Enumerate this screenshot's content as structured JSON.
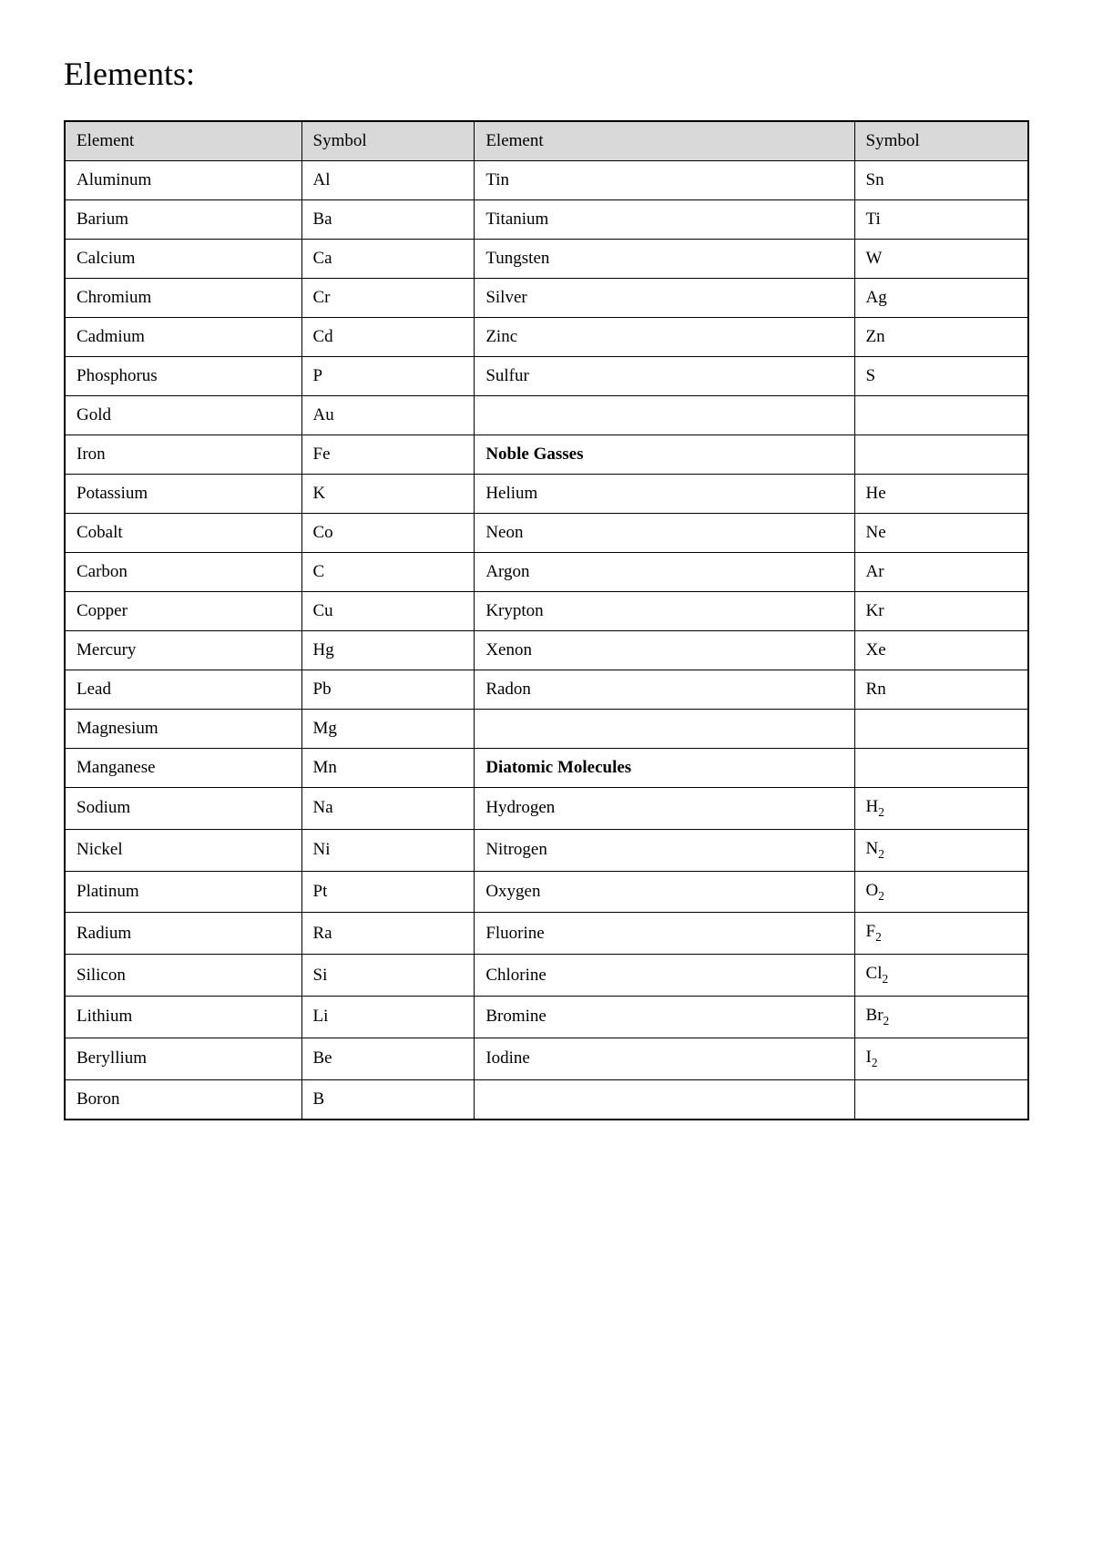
{
  "title": "Elements:",
  "table": {
    "header_bg": "#d9d9d9",
    "border_color": "#000000",
    "columns": [
      "Element",
      "Symbol",
      "Element",
      "Symbol"
    ],
    "rows": [
      {
        "c0": "Aluminum",
        "c1": "Al",
        "c2": "Tin",
        "c3": "Sn"
      },
      {
        "c0": "Barium",
        "c1": "Ba",
        "c2": "Titanium",
        "c3": "Ti"
      },
      {
        "c0": "Calcium",
        "c1": "Ca",
        "c2": "Tungsten",
        "c3": "W"
      },
      {
        "c0": "Chromium",
        "c1": "Cr",
        "c2": "Silver",
        "c3": "Ag"
      },
      {
        "c0": "Cadmium",
        "c1": "Cd",
        "c2": "Zinc",
        "c3": "Zn"
      },
      {
        "c0": "Phosphorus",
        "c1": "P",
        "c2": "Sulfur",
        "c3": "S"
      },
      {
        "c0": "Gold",
        "c1": "Au",
        "c2": "",
        "c3": ""
      },
      {
        "c0": "Iron",
        "c1": "Fe",
        "c2": "Noble Gasses",
        "c2_bold": true,
        "c3": ""
      },
      {
        "c0": "Potassium",
        "c1": "K",
        "c2": "Helium",
        "c3": "He"
      },
      {
        "c0": "Cobalt",
        "c1": "Co",
        "c2": "Neon",
        "c3": "Ne"
      },
      {
        "c0": "Carbon",
        "c1": "C",
        "c2": "Argon",
        "c3": "Ar"
      },
      {
        "c0": "Copper",
        "c1": "Cu",
        "c2": "Krypton",
        "c3": "Kr"
      },
      {
        "c0": "Mercury",
        "c1": "Hg",
        "c2": "Xenon",
        "c3": "Xe"
      },
      {
        "c0": "Lead",
        "c1": "Pb",
        "c2": "Radon",
        "c3": "Rn"
      },
      {
        "c0": "Magnesium",
        "c1": "Mg",
        "c2": "",
        "c3": ""
      },
      {
        "c0": "Manganese",
        "c1": "Mn",
        "c2": "Diatomic Molecules",
        "c2_bold": true,
        "c3": ""
      },
      {
        "c0": "Sodium",
        "c1": "Na",
        "c2": "Hydrogen",
        "c3": "H",
        "c3_sub": "2"
      },
      {
        "c0": "Nickel",
        "c1": "Ni",
        "c2": "Nitrogen",
        "c3": "N",
        "c3_sub": "2"
      },
      {
        "c0": "Platinum",
        "c1": "Pt",
        "c2": "Oxygen",
        "c3": "O",
        "c3_sub": "2"
      },
      {
        "c0": "Radium",
        "c1": "Ra",
        "c2": "Fluorine",
        "c3": "F",
        "c3_sub": "2"
      },
      {
        "c0": "Silicon",
        "c1": "Si",
        "c2": "Chlorine",
        "c3": "Cl",
        "c3_sub": "2"
      },
      {
        "c0": "Lithium",
        "c1": "Li",
        "c2": "Bromine",
        "c3": "Br",
        "c3_sub": "2"
      },
      {
        "c0": "Beryllium",
        "c1": "Be",
        "c2": "Iodine",
        "c3": "I",
        "c3_sub": "2"
      },
      {
        "c0": "Boron",
        "c1": "B",
        "c2": "",
        "c3": ""
      }
    ]
  }
}
